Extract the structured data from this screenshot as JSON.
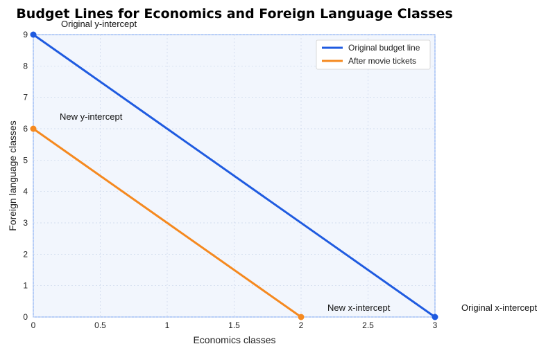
{
  "chart_data": {
    "type": "line",
    "title": "Budget Lines for Economics and Foreign Language Classes",
    "xlabel": "Economics classes",
    "ylabel": "Foreign language classes",
    "xlim": [
      0,
      3
    ],
    "ylim": [
      0,
      9
    ],
    "x_ticks": [
      "0",
      "0.5",
      "1",
      "1.5",
      "2",
      "2.5",
      "3"
    ],
    "y_ticks": [
      "0",
      "1",
      "2",
      "3",
      "4",
      "5",
      "6",
      "7",
      "8",
      "9"
    ],
    "grid": true,
    "legend_position": "top-right",
    "series": [
      {
        "name": "Original budget line",
        "color": "#1f5be0",
        "x": [
          0,
          3
        ],
        "y": [
          9,
          0
        ]
      },
      {
        "name": "After movie tickets",
        "color": "#f5891f",
        "x": [
          0,
          2
        ],
        "y": [
          6,
          0
        ]
      }
    ],
    "points": [
      {
        "x": 0,
        "y": 9,
        "color": "#1f5be0"
      },
      {
        "x": 3,
        "y": 0,
        "color": "#1f5be0"
      },
      {
        "x": 0,
        "y": 6,
        "color": "#f5891f"
      },
      {
        "x": 2,
        "y": 0,
        "color": "#f5891f"
      }
    ],
    "annotations": [
      {
        "text": "Original y-intercept",
        "x": 0,
        "y": 9
      },
      {
        "text": "New y-intercept",
        "x": 0,
        "y": 6
      },
      {
        "text": "New x-intercept",
        "x": 2,
        "y": 0
      },
      {
        "text": "Original x-intercept",
        "x": 3,
        "y": 0
      }
    ]
  }
}
